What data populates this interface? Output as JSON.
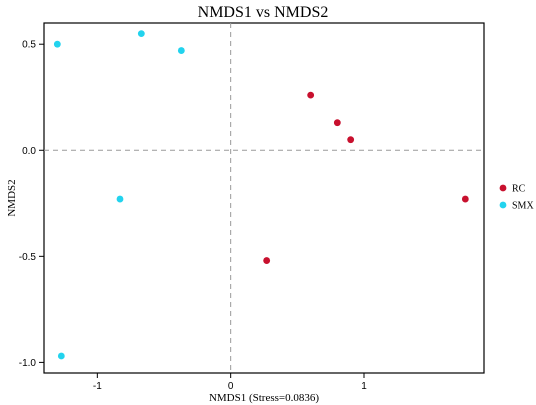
{
  "chart_data": {
    "type": "scatter",
    "title": "NMDS1 vs NMDS2",
    "xlabel": "NMDS1 (Stress=0.0836)",
    "ylabel": "NMDS2",
    "xlim": [
      -1.4,
      1.9
    ],
    "ylim": [
      -1.05,
      0.6
    ],
    "x_ticks": [
      -1,
      0,
      1
    ],
    "x_tick_labels": [
      "-1",
      "0",
      "1"
    ],
    "y_ticks": [
      0.5,
      0.0,
      -0.5,
      -1.0
    ],
    "y_tick_labels": [
      "0.5",
      "0.0",
      "-0.5",
      "-1.0"
    ],
    "reference_lines": {
      "x": 0,
      "y": 0,
      "style": "dashed"
    },
    "grid": false,
    "legend_position": "right",
    "series": [
      {
        "name": "RC",
        "color": "#c8102e",
        "points": [
          {
            "x": 0.6,
            "y": 0.26
          },
          {
            "x": 0.8,
            "y": 0.13
          },
          {
            "x": 0.9,
            "y": 0.05
          },
          {
            "x": 1.76,
            "y": -0.23
          },
          {
            "x": 0.27,
            "y": -0.52
          }
        ]
      },
      {
        "name": "SMX",
        "color": "#22d3ee",
        "points": [
          {
            "x": -1.3,
            "y": 0.5
          },
          {
            "x": -0.67,
            "y": 0.55
          },
          {
            "x": -0.37,
            "y": 0.47
          },
          {
            "x": -0.83,
            "y": -0.23
          },
          {
            "x": -1.27,
            "y": -0.97
          }
        ]
      }
    ]
  }
}
